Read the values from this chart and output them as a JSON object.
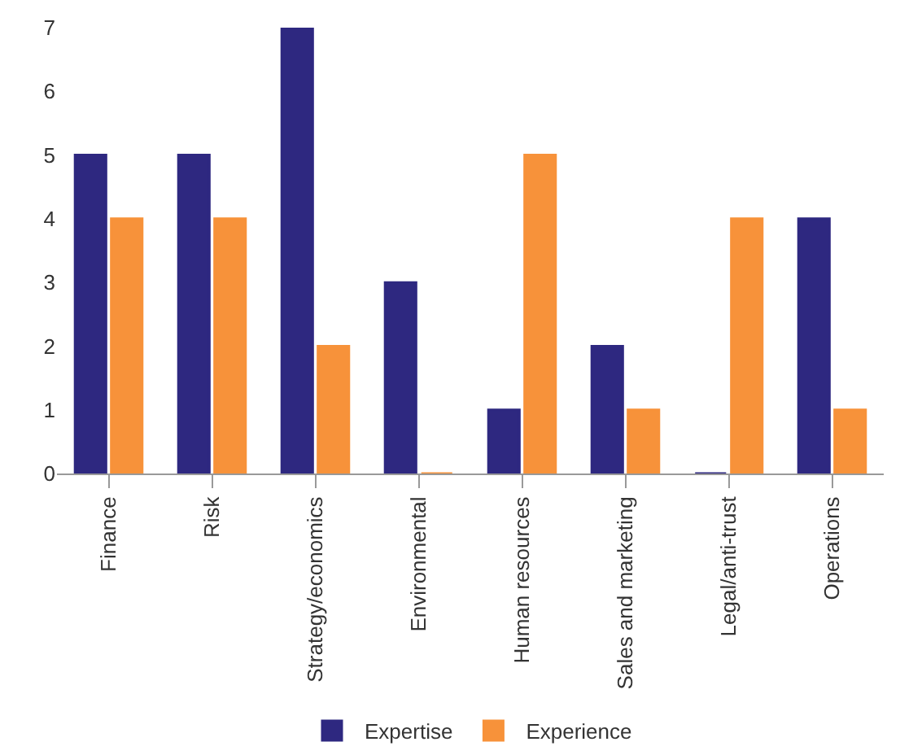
{
  "chart_data": {
    "type": "bar",
    "categories": [
      "Finance",
      "Risk",
      "Strategy/economics",
      "Environmental",
      "Human resources",
      "Sales and marketing",
      "Legal/anti-trust",
      "Operations"
    ],
    "series": [
      {
        "name": "Expertise",
        "color": "#2e2880",
        "values": [
          5,
          5,
          7,
          3,
          1,
          2,
          0,
          4
        ]
      },
      {
        "name": "Experience",
        "color": "#f7923a",
        "values": [
          4,
          4,
          2,
          0,
          5,
          1,
          4,
          1
        ]
      }
    ],
    "ylim": [
      0,
      7
    ],
    "yticks": [
      0,
      1,
      2,
      3,
      4,
      5,
      6,
      7
    ],
    "legend": "bottom"
  }
}
